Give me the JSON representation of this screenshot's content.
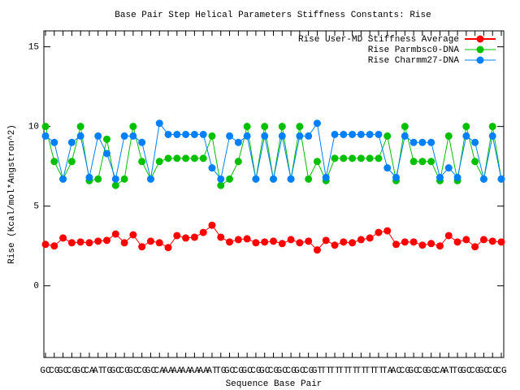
{
  "chart_data": {
    "type": "line",
    "title": "Base Pair Step Helical Parameters Stiffness Constants: Rise",
    "x_label": "Sequence Base Pair",
    "y_label": "Rise (Kcal/mol*Angstron^2)",
    "categories": [
      "GC",
      "CG",
      "GC",
      "CG",
      "GC",
      "CA",
      "AT",
      "TG",
      "GC",
      "CG",
      "GC",
      "CG",
      "GC",
      "CA",
      "AA",
      "AA",
      "AA",
      "AA",
      "AA",
      "AT",
      "TG",
      "GC",
      "CG",
      "GC",
      "CG",
      "GC",
      "CG",
      "GC",
      "CG",
      "GC",
      "CG",
      "GT",
      "TT",
      "TT",
      "TT",
      "TT",
      "TT",
      "TT",
      "TT",
      "TA",
      "AC",
      "CG",
      "GC",
      "CG",
      "GC",
      "CA",
      "AT",
      "TG",
      "GC",
      "CG",
      "GC",
      "CG",
      "CG"
    ],
    "ylim": [
      -4.5,
      16
    ],
    "yticks": [
      0,
      5,
      10,
      15
    ],
    "grid": false,
    "legend": "top-right",
    "series": [
      {
        "name": "Rise User-MD Stiffness Average",
        "color": "#ff0000",
        "values": [
          2.6,
          2.5,
          3.0,
          2.7,
          2.75,
          2.7,
          2.8,
          2.85,
          3.25,
          2.7,
          3.2,
          2.45,
          2.8,
          2.7,
          2.4,
          3.15,
          3.0,
          3.05,
          3.35,
          3.8,
          3.05,
          2.75,
          2.9,
          2.95,
          2.7,
          2.75,
          2.8,
          2.65,
          2.9,
          2.7,
          2.8,
          2.25,
          2.85,
          2.55,
          2.75,
          2.7,
          2.9,
          3.0,
          3.35,
          3.45,
          2.6,
          2.75,
          2.75,
          2.55,
          2.65,
          2.5,
          3.15,
          2.75,
          2.9,
          2.45,
          2.9,
          2.8,
          2.75
        ]
      },
      {
        "name": "Rise Parmbsc0-DNA",
        "color": "#00c000",
        "values": [
          10.0,
          7.8,
          6.7,
          7.8,
          10.0,
          6.6,
          6.7,
          9.2,
          6.3,
          6.7,
          10.0,
          7.8,
          6.7,
          7.8,
          8.0,
          8.0,
          8.0,
          8.0,
          8.0,
          9.4,
          6.3,
          6.7,
          7.8,
          10.0,
          6.7,
          10.0,
          6.7,
          10.0,
          6.7,
          10.0,
          6.7,
          7.8,
          6.6,
          8.0,
          8.0,
          8.0,
          8.0,
          8.0,
          8.0,
          9.4,
          6.6,
          10.0,
          7.8,
          7.8,
          7.8,
          6.6,
          9.4,
          6.6,
          10.0,
          7.8,
          6.7,
          10.0,
          6.7
        ]
      },
      {
        "name": "Rise Charmm27-DNA",
        "color": "#0080ff",
        "values": [
          9.4,
          9.0,
          6.7,
          9.0,
          9.4,
          6.8,
          9.4,
          8.3,
          6.7,
          9.4,
          9.4,
          9.0,
          6.7,
          10.2,
          9.5,
          9.5,
          9.5,
          9.5,
          9.5,
          7.4,
          6.7,
          9.4,
          9.0,
          9.4,
          6.7,
          9.4,
          6.7,
          9.4,
          6.7,
          9.4,
          9.4,
          10.2,
          6.8,
          9.5,
          9.5,
          9.5,
          9.5,
          9.5,
          9.5,
          7.4,
          6.8,
          9.4,
          9.0,
          9.0,
          9.0,
          6.8,
          7.4,
          6.8,
          9.4,
          9.0,
          6.7,
          9.4,
          6.7
        ]
      }
    ]
  }
}
